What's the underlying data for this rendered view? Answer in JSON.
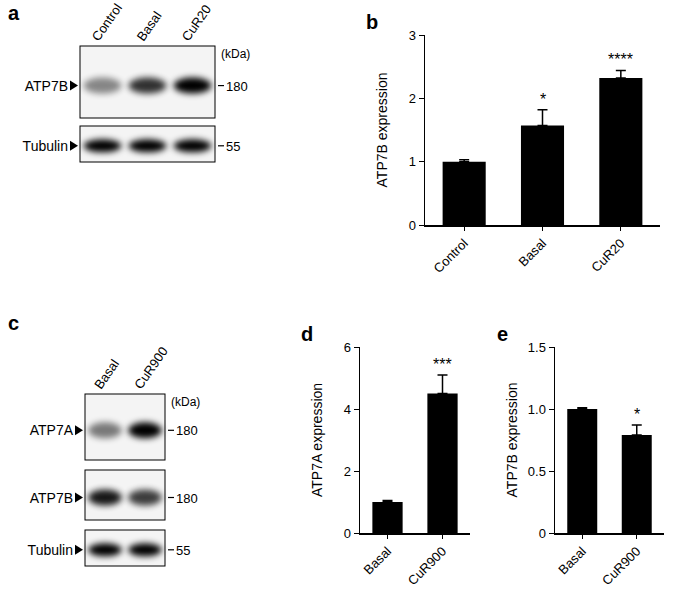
{
  "chart_data": [
    {
      "type": "bar",
      "panel_label": "b",
      "categories": [
        "Control",
        "Basal",
        "CuR20"
      ],
      "values": [
        1.0,
        1.57,
        2.32
      ],
      "errors": [
        0.03,
        0.25,
        0.12
      ],
      "color": "#000000",
      "ylabel": "ATP7B expression",
      "ylim": [
        0,
        3
      ],
      "yticks": [
        0,
        1,
        2,
        3
      ],
      "annotations": [
        {
          "category": "Basal",
          "text": "*"
        },
        {
          "category": "CuR20",
          "text": "****"
        }
      ]
    },
    {
      "type": "bar",
      "panel_label": "d",
      "categories": [
        "Basal",
        "CuR900"
      ],
      "values": [
        1.0,
        4.5
      ],
      "errors": [
        0.05,
        0.6
      ],
      "color": "#000000",
      "ylabel": "ATP7A expression",
      "ylim": [
        0,
        6
      ],
      "yticks": [
        0,
        2,
        4,
        6
      ],
      "annotations": [
        {
          "category": "CuR900",
          "text": "***"
        }
      ]
    },
    {
      "type": "bar",
      "panel_label": "e",
      "categories": [
        "Basal",
        "CuR900"
      ],
      "values": [
        1.0,
        0.79
      ],
      "errors": [
        0.01,
        0.08
      ],
      "color": "#000000",
      "ylabel": "ATP7B expression",
      "ylim": [
        0,
        1.5
      ],
      "yticks": [
        0,
        0.5,
        {
          "value": 1,
          "label": "1.0"
        },
        1.5
      ],
      "annotations": [
        {
          "category": "CuR900",
          "text": "*"
        }
      ]
    }
  ],
  "blots": [
    {
      "panel_label": "a",
      "unit": "(kDa)",
      "lanes": [
        "Control",
        "Basal",
        "CuR20"
      ],
      "rows": [
        {
          "label": "ATP7B",
          "marker": 180,
          "bands": [
            0.45,
            0.8,
            1.0
          ]
        },
        {
          "label": "Tubulin",
          "marker": 55,
          "bands": [
            1.0,
            1.0,
            1.0
          ]
        }
      ]
    },
    {
      "panel_label": "c",
      "unit": "(kDa)",
      "lanes": [
        "Basal",
        "CuR900"
      ],
      "rows": [
        {
          "label": "ATP7A",
          "marker": 180,
          "bands": [
            0.5,
            1.0
          ]
        },
        {
          "label": "ATP7B",
          "marker": 180,
          "bands": [
            0.9,
            0.75
          ]
        },
        {
          "label": "Tubulin",
          "marker": 55,
          "bands": [
            1.0,
            1.0
          ]
        }
      ]
    }
  ]
}
